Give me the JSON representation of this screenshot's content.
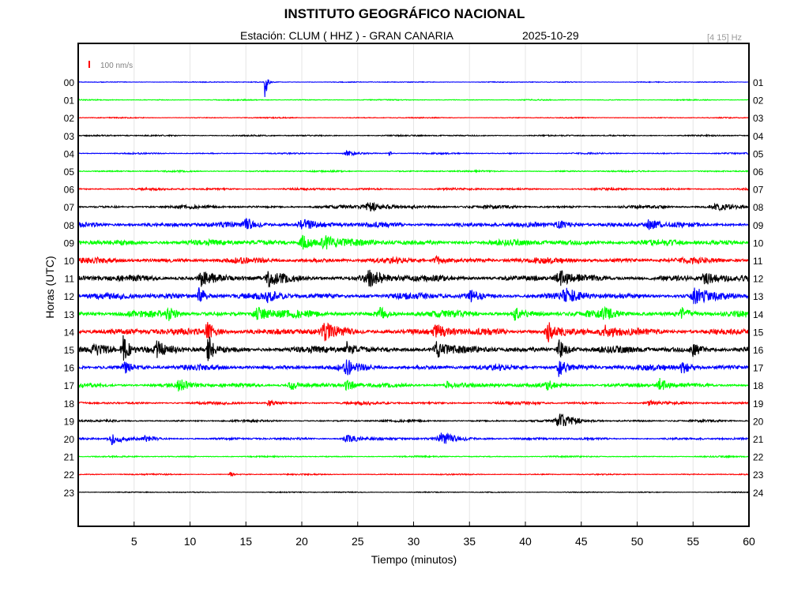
{
  "header": {
    "title": "INSTITUTO GEOGRÁFICO NACIONAL",
    "station_line": "Estación:  CLUM ( HHZ ) - GRAN CANARIA",
    "date": "2025-10-29",
    "filter": "[4 15] Hz"
  },
  "chart_data": {
    "type": "line",
    "title": "INSTITUTO GEOGRÁFICO NACIONAL",
    "xlabel": "Tiempo (minutos)",
    "ylabel": "Horas (UTC)",
    "xlim": [
      0,
      60
    ],
    "x_ticks": [
      5,
      10,
      15,
      20,
      25,
      30,
      35,
      40,
      45,
      50,
      55,
      60
    ],
    "x_tick_labels": [
      "5",
      "10",
      "15",
      "20",
      "25",
      "30",
      "35",
      "40",
      "45",
      "50",
      "55",
      "60"
    ],
    "left_labels": [
      "00",
      "01",
      "02",
      "03",
      "04",
      "05",
      "06",
      "07",
      "08",
      "09",
      "10",
      "11",
      "12",
      "13",
      "14",
      "15",
      "16",
      "17",
      "18",
      "19",
      "20",
      "21",
      "22",
      "23"
    ],
    "right_labels": [
      "01",
      "02",
      "03",
      "04",
      "05",
      "06",
      "07",
      "08",
      "09",
      "10",
      "11",
      "12",
      "13",
      "14",
      "15",
      "16",
      "17",
      "18",
      "19",
      "20",
      "21",
      "22",
      "23",
      "24"
    ],
    "scale_label": "100 nm/s",
    "grid": true,
    "colors": {
      "blue": "#0000ff",
      "green": "#00ff00",
      "red": "#ff0000",
      "black": "#000000",
      "scale_bar": "#ff0000",
      "grid": "#e6e6e6"
    },
    "series": [
      {
        "hour": "00",
        "color": "blue",
        "noise": 0.6,
        "events": [
          {
            "t": 16.7,
            "amp": 28,
            "dur": 0.25
          }
        ]
      },
      {
        "hour": "01",
        "color": "green",
        "noise": 0.7,
        "events": []
      },
      {
        "hour": "02",
        "color": "red",
        "noise": 0.7,
        "events": []
      },
      {
        "hour": "03",
        "color": "black",
        "noise": 1.0,
        "events": []
      },
      {
        "hour": "04",
        "color": "blue",
        "noise": 1.0,
        "events": [
          {
            "t": 24.0,
            "amp": 3,
            "dur": 1.5
          },
          {
            "t": 27.8,
            "amp": 6,
            "dur": 0.2
          }
        ]
      },
      {
        "hour": "05",
        "color": "green",
        "noise": 1.1,
        "events": []
      },
      {
        "hour": "06",
        "color": "red",
        "noise": 1.5,
        "events": []
      },
      {
        "hour": "07",
        "color": "black",
        "noise": 2.2,
        "events": [
          {
            "t": 26,
            "amp": 5,
            "dur": 3
          },
          {
            "t": 57,
            "amp": 4,
            "dur": 3
          }
        ]
      },
      {
        "hour": "08",
        "color": "blue",
        "noise": 3.6,
        "events": [
          {
            "t": 15,
            "amp": 8,
            "dur": 1.2
          },
          {
            "t": 20,
            "amp": 6,
            "dur": 2
          },
          {
            "t": 43,
            "amp": 5,
            "dur": 1.5
          },
          {
            "t": 51,
            "amp": 5,
            "dur": 1.5
          }
        ]
      },
      {
        "hour": "09",
        "color": "green",
        "noise": 4.3,
        "events": [
          {
            "t": 20,
            "amp": 9,
            "dur": 1.5
          },
          {
            "t": 22,
            "amp": 9,
            "dur": 1.5
          }
        ]
      },
      {
        "hour": "10",
        "color": "red",
        "noise": 4.2,
        "events": [
          {
            "t": 32,
            "amp": 6,
            "dur": 1
          }
        ]
      },
      {
        "hour": "11",
        "color": "black",
        "noise": 4.5,
        "events": [
          {
            "t": 11,
            "amp": 9,
            "dur": 1.5
          },
          {
            "t": 17,
            "amp": 8,
            "dur": 1.5
          },
          {
            "t": 26,
            "amp": 9,
            "dur": 2
          },
          {
            "t": 43,
            "amp": 9,
            "dur": 1.5
          },
          {
            "t": 56,
            "amp": 10,
            "dur": 1
          }
        ]
      },
      {
        "hour": "12",
        "color": "blue",
        "noise": 4.6,
        "events": [
          {
            "t": 10.8,
            "amp": 12,
            "dur": 0.8
          },
          {
            "t": 17,
            "amp": 8,
            "dur": 1
          },
          {
            "t": 35,
            "amp": 7,
            "dur": 1
          },
          {
            "t": 43.5,
            "amp": 9,
            "dur": 1.5
          },
          {
            "t": 55,
            "amp": 10,
            "dur": 1.5
          }
        ]
      },
      {
        "hour": "13",
        "color": "green",
        "noise": 4.8,
        "events": [
          {
            "t": 8,
            "amp": 8,
            "dur": 1
          },
          {
            "t": 16,
            "amp": 9,
            "dur": 1.5
          },
          {
            "t": 27,
            "amp": 7,
            "dur": 1
          },
          {
            "t": 39,
            "amp": 8,
            "dur": 1
          },
          {
            "t": 47,
            "amp": 6,
            "dur": 1
          },
          {
            "t": 54,
            "amp": 7,
            "dur": 1
          }
        ]
      },
      {
        "hour": "14",
        "color": "red",
        "noise": 5.0,
        "events": [
          {
            "t": 11.5,
            "amp": 14,
            "dur": 0.8
          },
          {
            "t": 22,
            "amp": 9,
            "dur": 1.5
          },
          {
            "t": 32,
            "amp": 8,
            "dur": 1.5
          },
          {
            "t": 42,
            "amp": 14,
            "dur": 1.2
          },
          {
            "t": 47,
            "amp": 8,
            "dur": 1.5
          }
        ]
      },
      {
        "hour": "15",
        "color": "black",
        "noise": 4.8,
        "events": [
          {
            "t": 1.5,
            "amp": 11,
            "dur": 1.5
          },
          {
            "t": 4,
            "amp": 18,
            "dur": 0.8
          },
          {
            "t": 7,
            "amp": 9,
            "dur": 1
          },
          {
            "t": 11.6,
            "amp": 30,
            "dur": 0.5
          },
          {
            "t": 24,
            "amp": 9,
            "dur": 1
          },
          {
            "t": 32,
            "amp": 12,
            "dur": 1
          },
          {
            "t": 43,
            "amp": 12,
            "dur": 1
          },
          {
            "t": 55,
            "amp": 8,
            "dur": 1
          }
        ]
      },
      {
        "hour": "16",
        "color": "blue",
        "noise": 4.2,
        "events": [
          {
            "t": 4,
            "amp": 12,
            "dur": 0.8
          },
          {
            "t": 24,
            "amp": 9,
            "dur": 1
          },
          {
            "t": 43,
            "amp": 12,
            "dur": 1
          },
          {
            "t": 54,
            "amp": 10,
            "dur": 0.8
          }
        ]
      },
      {
        "hour": "17",
        "color": "green",
        "noise": 3.0,
        "events": [
          {
            "t": 9,
            "amp": 8,
            "dur": 1
          },
          {
            "t": 19,
            "amp": 7,
            "dur": 1
          },
          {
            "t": 24,
            "amp": 8,
            "dur": 1
          },
          {
            "t": 33,
            "amp": 5,
            "dur": 1
          },
          {
            "t": 42,
            "amp": 6,
            "dur": 1
          },
          {
            "t": 52,
            "amp": 8,
            "dur": 1
          }
        ]
      },
      {
        "hour": "18",
        "color": "red",
        "noise": 2.0,
        "events": [
          {
            "t": 17,
            "amp": 4,
            "dur": 0.6
          },
          {
            "t": 51,
            "amp": 3,
            "dur": 0.6
          }
        ]
      },
      {
        "hour": "19",
        "color": "black",
        "noise": 1.5,
        "events": [
          {
            "t": 43,
            "amp": 9,
            "dur": 2
          }
        ]
      },
      {
        "hour": "20",
        "color": "blue",
        "noise": 1.6,
        "events": [
          {
            "t": 3,
            "amp": 7,
            "dur": 1.5
          },
          {
            "t": 6,
            "amp": 4,
            "dur": 1
          },
          {
            "t": 24,
            "amp": 5,
            "dur": 2
          },
          {
            "t": 32.5,
            "amp": 8,
            "dur": 2
          }
        ]
      },
      {
        "hour": "21",
        "color": "green",
        "noise": 1.0,
        "events": []
      },
      {
        "hour": "22",
        "color": "red",
        "noise": 0.9,
        "events": [
          {
            "t": 13.6,
            "amp": 5,
            "dur": 0.3
          }
        ]
      },
      {
        "hour": "23",
        "color": "black",
        "noise": 0.7,
        "events": []
      }
    ]
  }
}
